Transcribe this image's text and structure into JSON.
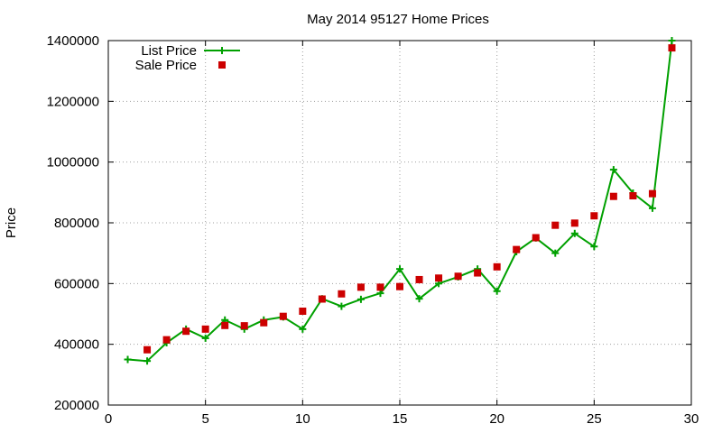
{
  "chart_data": {
    "type": "line",
    "title": "May 2014 95127 Home Prices",
    "xlabel": "",
    "ylabel": "Price",
    "xlim": [
      0,
      30
    ],
    "ylim": [
      200000,
      1400000
    ],
    "xticks": [
      "0",
      "5",
      "10",
      "15",
      "20",
      "25",
      "30"
    ],
    "yticks": [
      "200000",
      "400000",
      "600000",
      "800000",
      "1000000",
      "1200000",
      "1400000"
    ],
    "grid": true,
    "legend_position": "top-left",
    "series": [
      {
        "name": "List Price",
        "style": "line-plus",
        "color": "#00a000",
        "x": [
          1,
          2,
          3,
          4,
          5,
          6,
          7,
          8,
          9,
          10,
          11,
          12,
          13,
          14,
          15,
          16,
          17,
          18,
          19,
          20,
          21,
          22,
          23,
          24,
          25,
          26,
          27,
          28,
          29
        ],
        "y": [
          350000,
          345000,
          405000,
          450000,
          420000,
          480000,
          450000,
          480000,
          490000,
          450000,
          550000,
          525000,
          548000,
          568000,
          648000,
          550000,
          600000,
          622000,
          648000,
          575000,
          705000,
          750000,
          700000,
          765000,
          722000,
          975000,
          898000,
          848000,
          1400000
        ]
      },
      {
        "name": "Sale Price",
        "style": "square",
        "color": "#cc0000",
        "x": [
          2,
          3,
          4,
          5,
          6,
          7,
          8,
          9,
          10,
          11,
          12,
          13,
          14,
          15,
          16,
          17,
          18,
          19,
          20,
          21,
          22,
          23,
          24,
          25,
          26,
          27,
          28,
          29
        ],
        "y": [
          382000,
          415000,
          443000,
          450000,
          462000,
          461000,
          471000,
          492000,
          509000,
          549000,
          566000,
          588000,
          588000,
          590000,
          613000,
          618000,
          624000,
          635000,
          655000,
          712000,
          751000,
          792000,
          799000,
          823000,
          887000,
          889000,
          896000,
          1376000
        ]
      }
    ]
  }
}
